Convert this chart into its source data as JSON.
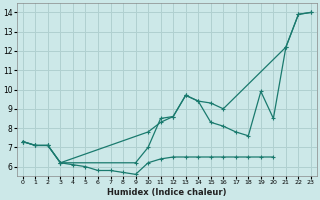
{
  "xlabel": "Humidex (Indice chaleur)",
  "bg_color": "#cce8e8",
  "grid_color": "#b0d0d0",
  "line_color": "#1a7a6e",
  "xlim": [
    -0.5,
    23.5
  ],
  "ylim": [
    5.5,
    14.5
  ],
  "xticks": [
    0,
    1,
    2,
    3,
    4,
    5,
    6,
    7,
    8,
    9,
    10,
    11,
    12,
    13,
    14,
    15,
    16,
    17,
    18,
    19,
    20,
    21,
    22,
    23
  ],
  "yticks": [
    6,
    7,
    8,
    9,
    10,
    11,
    12,
    13,
    14
  ],
  "lines": [
    {
      "x": [
        0,
        1,
        2,
        3,
        10,
        11,
        12,
        13,
        14,
        15,
        16,
        21,
        22,
        23
      ],
      "y": [
        7.3,
        7.1,
        7.1,
        6.2,
        7.8,
        8.3,
        8.6,
        9.7,
        9.4,
        9.3,
        9.0,
        12.2,
        13.9,
        14.0
      ]
    },
    {
      "x": [
        0,
        1,
        2,
        3,
        9,
        10,
        11,
        12,
        13,
        14,
        15,
        16,
        17,
        18,
        19,
        20,
        21,
        22,
        23
      ],
      "y": [
        7.3,
        7.1,
        7.1,
        6.2,
        6.2,
        7.0,
        8.5,
        8.6,
        9.7,
        9.4,
        8.3,
        8.1,
        7.8,
        7.6,
        9.9,
        8.5,
        12.2,
        13.9,
        14.0
      ]
    },
    {
      "x": [
        0,
        1,
        2,
        3,
        4,
        5,
        6,
        7,
        8,
        9,
        10,
        11,
        12,
        13,
        14,
        15,
        16,
        17,
        18,
        19,
        20
      ],
      "y": [
        7.3,
        7.1,
        7.1,
        6.2,
        6.1,
        6.0,
        5.8,
        5.8,
        5.7,
        5.6,
        6.2,
        6.4,
        6.5,
        6.5,
        6.5,
        6.5,
        6.5,
        6.5,
        6.5,
        6.5,
        6.5
      ]
    }
  ]
}
